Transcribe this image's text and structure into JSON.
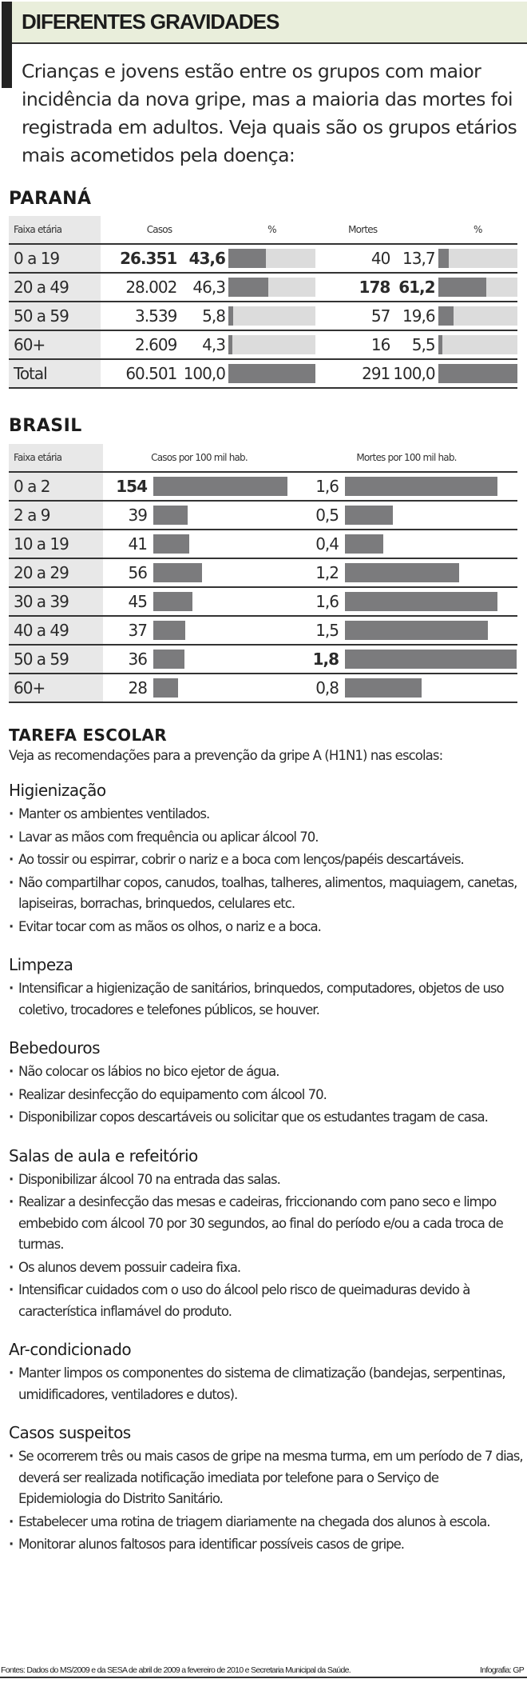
{
  "header": {
    "title": "DIFERENTES GRAVIDADES",
    "intro": "Crianças e jovens estão entre os grupos com maior incidência da nova gripe, mas a maioria das mortes foi registrada em adultos. Veja quais são os grupos etários mais acometidos pela doença:"
  },
  "parana": {
    "title": "PARANÁ",
    "headers": {
      "age": "Faixa etária",
      "cases": "Casos",
      "cases_pct": "%",
      "deaths": "Mortes",
      "deaths_pct": "%"
    },
    "rows": [
      {
        "age": "0 a 19",
        "cases": "26.351",
        "cases_pct": "43,6",
        "deaths": "40",
        "deaths_pct": "13,7"
      },
      {
        "age": "20 a 49",
        "cases": "28.002",
        "cases_pct": "46,3",
        "deaths": "178",
        "deaths_pct": "61,2"
      },
      {
        "age": "50 a 59",
        "cases": "3.539",
        "cases_pct": "5,8",
        "deaths": "57",
        "deaths_pct": "19,6"
      },
      {
        "age": "60+",
        "cases": "2.609",
        "cases_pct": "4,3",
        "deaths": "16",
        "deaths_pct": "5,5"
      },
      {
        "age": "Total",
        "cases": "60.501",
        "cases_pct": "100,0",
        "deaths": "291",
        "deaths_pct": "100,0"
      }
    ]
  },
  "brasil": {
    "title": "BRASIL",
    "headers": {
      "age": "Faixa etária",
      "cases": "Casos por 100 mil hab.",
      "deaths": "Mortes por 100 mil hab."
    },
    "rows": [
      {
        "age": "0 a 2",
        "cases": "154",
        "deaths": "1,6"
      },
      {
        "age": "2 a 9",
        "cases": "39",
        "deaths": "0,5"
      },
      {
        "age": "10 a 19",
        "cases": "41",
        "deaths": "0,4"
      },
      {
        "age": "20 a 29",
        "cases": "56",
        "deaths": "1,2"
      },
      {
        "age": "30 a 39",
        "cases": "45",
        "deaths": "1,6"
      },
      {
        "age": "40 a 49",
        "cases": "37",
        "deaths": "1,5"
      },
      {
        "age": "50 a 59",
        "cases": "36",
        "deaths": "1,8"
      },
      {
        "age": "60+",
        "cases": "28",
        "deaths": "0,8"
      }
    ]
  },
  "tarefa": {
    "title": "TAREFA ESCOLAR",
    "lead": "Veja as recomendações para a prevenção da gripe A (H1N1) nas escolas:",
    "groups": [
      {
        "title": "Higienização",
        "items": [
          "Manter os ambientes ventilados.",
          "Lavar as mãos com frequência ou aplicar álcool 70.",
          "Ao tossir ou espirrar, cobrir o nariz e a boca com lenços/papéis descartáveis.",
          "Não compartilhar copos, canudos, toalhas, talheres, alimentos, maquiagem, canetas, lapiseiras, borrachas, brinquedos, celulares etc.",
          "Evitar tocar com as mãos os olhos, o nariz e a boca."
        ]
      },
      {
        "title": "Limpeza",
        "items": [
          "Intensificar a higienização de sanitários, brinquedos, computadores, objetos de uso coletivo, trocadores e telefones públicos, se houver."
        ]
      },
      {
        "title": "Bebedouros",
        "items": [
          "Não colocar os lábios no bico ejetor de água.",
          "Realizar desinfecção do equipamento com álcool 70.",
          "Disponibilizar copos descartáveis ou solicitar que os estudantes tragam de casa."
        ]
      },
      {
        "title": "Salas de aula e refeitório",
        "items": [
          "Disponibilizar álcool 70 na entrada das salas.",
          "Realizar a desinfecção das mesas e cadeiras, friccionando com pano seco e limpo embebido com álcool 70 por 30 segundos, ao final do período e/ou a cada troca de turmas.",
          "Os alunos devem possuir cadeira fixa.",
          "Intensificar cuidados com o uso do álcool pelo risco de queimaduras devido à característica inflamável do produto."
        ]
      },
      {
        "title": "Ar-condicionado",
        "items": [
          "Manter limpos os componentes do sistema de climatização (bandejas, serpentinas, umidificadores, ventiladores e dutos)."
        ]
      },
      {
        "title": "Casos suspeitos",
        "items": [
          "Se ocorrerem três ou mais casos de gripe na mesma turma, em um período de 7 dias, deverá ser realizada notificação imediata por telefone para o Serviço de Epidemiologia do Distrito Sanitário.",
          "Estabelecer uma rotina de triagem diariamente na chegada dos alunos à escola.",
          "Monitorar alunos faltosos para identificar possíveis casos de gripe."
        ]
      }
    ]
  },
  "footer": {
    "sources": "Fontes: Dados do MS/2009 e da SESA de abril de 2009 a fevereiro de 2010 e Secretaria Municipal da Saúde.",
    "credit": "Infografia: GP"
  },
  "colors": {
    "bar": "#7b7b7d",
    "track": "#dcdcdc",
    "title_band": "#e9eedb",
    "age_col": "#e8e8e8"
  },
  "chart_data": [
    {
      "type": "bar",
      "title": "PARANÁ",
      "categories": [
        "0 a 19",
        "20 a 49",
        "50 a 59",
        "60+",
        "Total"
      ],
      "series": [
        {
          "name": "Casos",
          "values": [
            26351,
            28002,
            3539,
            2609,
            60501
          ]
        },
        {
          "name": "Casos %",
          "values": [
            43.6,
            46.3,
            5.8,
            4.3,
            100.0
          ]
        },
        {
          "name": "Mortes",
          "values": [
            40,
            178,
            57,
            16,
            291
          ]
        },
        {
          "name": "Mortes %",
          "values": [
            13.7,
            61.2,
            19.6,
            5.5,
            100.0
          ]
        }
      ],
      "xlabel": "Faixa etária",
      "ylabel": "%",
      "ylim": [
        0,
        100
      ]
    },
    {
      "type": "bar",
      "title": "BRASIL",
      "categories": [
        "0 a 2",
        "2 a 9",
        "10 a 19",
        "20 a 29",
        "30 a 39",
        "40 a 49",
        "50 a 59",
        "60+"
      ],
      "series": [
        {
          "name": "Casos por 100 mil hab.",
          "values": [
            154,
            39,
            41,
            56,
            45,
            37,
            36,
            28
          ]
        },
        {
          "name": "Mortes por 100 mil hab.",
          "values": [
            1.6,
            0.5,
            0.4,
            1.2,
            1.6,
            1.5,
            1.8,
            0.8
          ]
        }
      ],
      "xlabel": "Faixa etária",
      "ylabel": "por 100 mil hab."
    }
  ]
}
